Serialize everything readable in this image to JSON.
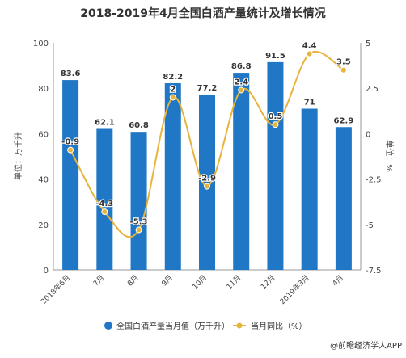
{
  "chart_data": {
    "type": "bar",
    "title": "2018-2019年4月全国白酒产量统计及增长情况",
    "categories": [
      "2018年6月",
      "7月",
      "8月",
      "9月",
      "10月",
      "11月",
      "12月",
      "2019年3月",
      "4月"
    ],
    "series": [
      {
        "name": "全国白酒产量当月值（万千升）",
        "type": "bar",
        "axis": "left",
        "values": [
          83.6,
          62.1,
          60.8,
          82.2,
          77.2,
          86.8,
          91.5,
          71,
          62.9
        ],
        "labels": [
          "83.6",
          "62.1",
          "60.8",
          "82.2",
          "77.2",
          "86.8",
          "91.5",
          "71",
          "62.9"
        ],
        "color": "#1f77c6"
      },
      {
        "name": "当月同比（%）",
        "type": "line",
        "axis": "right",
        "smooth": true,
        "values": [
          -0.9,
          -4.3,
          -5.3,
          2,
          -2.9,
          2.4,
          0.5,
          4.4,
          3.5
        ],
        "labels": [
          "-0.9",
          "-4.3",
          "-5.3",
          "2",
          "-2.9",
          "2.4",
          "0.5",
          "4.4",
          "3.5"
        ],
        "color": "#e6b43c"
      }
    ],
    "y_left": {
      "label": "单位：万千升",
      "min": 0,
      "max": 100,
      "ticks": [
        0,
        20,
        40,
        60,
        80,
        100
      ],
      "tick_labels": [
        "0",
        "20",
        "40",
        "60",
        "80",
        "100"
      ]
    },
    "y_right": {
      "label": "单位：%",
      "min": -7.5,
      "max": 5,
      "ticks": [
        -7.5,
        -5,
        -2.5,
        0,
        2.5,
        5
      ],
      "tick_labels": [
        "-7.5",
        "-5",
        "-2.5",
        "0",
        "2.5",
        "5"
      ]
    },
    "grid": false,
    "legend_position": "bottom"
  },
  "source": "@前瞻经济学人APP"
}
